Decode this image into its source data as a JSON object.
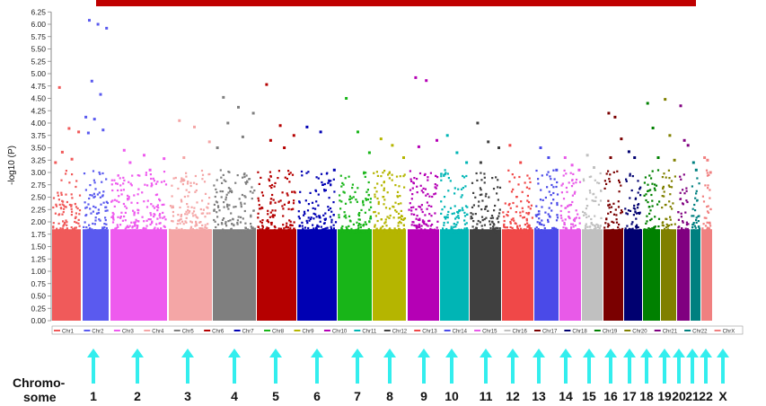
{
  "chart_data": {
    "type": "scatter",
    "ylabel": "-log10 (P)",
    "xlabel": "",
    "ylim": [
      0,
      6.25
    ],
    "y_ticks": [
      "0.00",
      "0.25",
      "0.50",
      "0.75",
      "1.00",
      "1.25",
      "1.50",
      "1.75",
      "2.00",
      "2.25",
      "2.50",
      "2.75",
      "3.00",
      "3.25",
      "3.50",
      "3.75",
      "4.00",
      "4.25",
      "4.50",
      "4.75",
      "5.00",
      "5.25",
      "5.50",
      "5.75",
      "6.00",
      "6.25"
    ],
    "grid": false,
    "legend_position": "bottom",
    "series": [
      {
        "name": "Chr1",
        "color": "#f05a5a",
        "top_values": [
          4.72,
          3.89,
          3.82,
          3.41,
          3.27,
          3.2
        ]
      },
      {
        "name": "Chr2",
        "color": "#5a5aef",
        "top_values": [
          6.08,
          6.0,
          5.92,
          4.85,
          4.58,
          4.12,
          4.08,
          3.86,
          3.8
        ]
      },
      {
        "name": "Chr3",
        "color": "#ee5aee",
        "top_values": [
          3.45,
          3.35,
          3.28,
          3.2,
          3.05
        ]
      },
      {
        "name": "Chr4",
        "color": "#f4a6a6",
        "top_values": [
          4.05,
          3.92,
          3.62,
          3.3
        ]
      },
      {
        "name": "Chr5",
        "color": "#7f7f7f",
        "top_values": [
          4.52,
          4.32,
          4.2,
          4.0,
          3.72,
          3.5
        ]
      },
      {
        "name": "Chr6",
        "color": "#b50000",
        "top_values": [
          4.78,
          3.95,
          3.75,
          3.65,
          3.5
        ]
      },
      {
        "name": "Chr7",
        "color": "#0000b3",
        "top_values": [
          3.92,
          3.82,
          3.05
        ]
      },
      {
        "name": "Chr8",
        "color": "#18b518",
        "top_values": [
          4.5,
          3.82,
          3.4
        ]
      },
      {
        "name": "Chr9",
        "color": "#b5b500",
        "top_values": [
          3.68,
          3.55,
          3.3
        ]
      },
      {
        "name": "Chr10",
        "color": "#b500b5",
        "top_values": [
          4.92,
          4.86,
          3.65,
          3.52
        ]
      },
      {
        "name": "Chr11",
        "color": "#00b5b5",
        "top_values": [
          3.75,
          3.4,
          3.2
        ]
      },
      {
        "name": "Chr12",
        "color": "#404040",
        "top_values": [
          4.0,
          3.62,
          3.5,
          3.2
        ]
      },
      {
        "name": "Chr13",
        "color": "#f04848",
        "top_values": [
          3.55,
          3.2
        ]
      },
      {
        "name": "Chr14",
        "color": "#4a4ae8",
        "top_values": [
          3.5,
          3.3,
          3.05
        ]
      },
      {
        "name": "Chr15",
        "color": "#e85ae8",
        "top_values": [
          3.3,
          3.15,
          3.05
        ]
      },
      {
        "name": "Chr16",
        "color": "#c0c0c0",
        "top_values": [
          3.35,
          3.1
        ]
      },
      {
        "name": "Chr17",
        "color": "#7a0000",
        "top_values": [
          4.2,
          4.12,
          3.68,
          3.3
        ]
      },
      {
        "name": "Chr18",
        "color": "#000070",
        "top_values": [
          3.42,
          3.3
        ]
      },
      {
        "name": "Chr19",
        "color": "#008000",
        "top_values": [
          4.4,
          3.9,
          3.3
        ]
      },
      {
        "name": "Chr20",
        "color": "#808000",
        "top_values": [
          4.48,
          3.75,
          3.25
        ]
      },
      {
        "name": "Chr21",
        "color": "#800080",
        "top_values": [
          4.35,
          3.65,
          3.55
        ]
      },
      {
        "name": "Chr22",
        "color": "#008080",
        "top_values": [
          3.2,
          3.05
        ]
      },
      {
        "name": "ChrX",
        "color": "#f08080",
        "top_values": [
          3.3,
          3.25,
          3.0
        ]
      }
    ],
    "chromosome_axis": {
      "caption": [
        "Chromo-",
        "some"
      ],
      "labels": [
        "1",
        "2",
        "3",
        "4",
        "5",
        "6",
        "7",
        "8",
        "9",
        "10",
        "11",
        "12",
        "13",
        "14",
        "15",
        "16",
        "17",
        "18",
        "19",
        "20",
        "21",
        "22",
        "X"
      ]
    }
  },
  "colors": {
    "title_bar": "#c00000",
    "arrow": "#33eeee"
  }
}
